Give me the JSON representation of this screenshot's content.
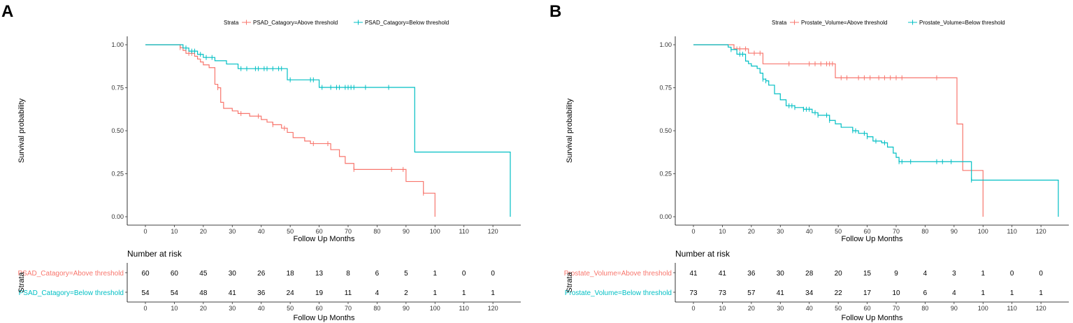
{
  "chart_data": [
    {
      "type": "line",
      "panel_label": "A",
      "title": "",
      "legend_title": "Strata",
      "legend_position": "top",
      "xlabel": "Follow Up Months",
      "ylabel": "Survival probability",
      "xlim": [
        0,
        126
      ],
      "ylim": [
        0,
        1
      ],
      "x_ticks": [
        "0",
        "10",
        "20",
        "30",
        "40",
        "50",
        "60",
        "70",
        "80",
        "90",
        "100",
        "110",
        "120"
      ],
      "y_ticks": [
        "0.00",
        "0.25",
        "0.50",
        "0.75",
        "1.00"
      ],
      "risk_title": "Number at risk",
      "risk_ylabel": "Strata",
      "risk_xlabel": "Follow Up Months",
      "series": [
        {
          "name": "PSAD_Catagory=Above threshold",
          "color": "#F8766D",
          "steps": [
            [
              0,
              1.0
            ],
            [
              12,
              0.983
            ],
            [
              13,
              0.967
            ],
            [
              14,
              0.95
            ],
            [
              17,
              0.933
            ],
            [
              18,
              0.917
            ],
            [
              19,
              0.9
            ],
            [
              20,
              0.883
            ],
            [
              22,
              0.867
            ],
            [
              24,
              0.77
            ],
            [
              25,
              0.75
            ],
            [
              26,
              0.665
            ],
            [
              27,
              0.63
            ],
            [
              30,
              0.615
            ],
            [
              32,
              0.6
            ],
            [
              36,
              0.585
            ],
            [
              40,
              0.565
            ],
            [
              42,
              0.55
            ],
            [
              44,
              0.535
            ],
            [
              47,
              0.515
            ],
            [
              49,
              0.49
            ],
            [
              51,
              0.46
            ],
            [
              55,
              0.44
            ],
            [
              57,
              0.425
            ],
            [
              64,
              0.39
            ],
            [
              67,
              0.35
            ],
            [
              69,
              0.31
            ],
            [
              72,
              0.275
            ],
            [
              90,
              0.205
            ],
            [
              96,
              0.137
            ],
            [
              100,
              0.0
            ]
          ],
          "censor_x": [
            12,
            15,
            16,
            25,
            33,
            39,
            44,
            48,
            58,
            63,
            72,
            85,
            89,
            96
          ],
          "at_risk": [
            60,
            60,
            45,
            30,
            26,
            18,
            13,
            8,
            6,
            5,
            1,
            0,
            0
          ]
        },
        {
          "name": "PSAD_Catagory=Below threshold",
          "color": "#00BFC4",
          "steps": [
            [
              0,
              1.0
            ],
            [
              13,
              0.981
            ],
            [
              15,
              0.963
            ],
            [
              18,
              0.944
            ],
            [
              20,
              0.926
            ],
            [
              24,
              0.907
            ],
            [
              28,
              0.888
            ],
            [
              32,
              0.861
            ],
            [
              49,
              0.796
            ],
            [
              60,
              0.752
            ],
            [
              93,
              0.376
            ],
            [
              126,
              0.0
            ]
          ],
          "censor_x": [
            14,
            16,
            17,
            19,
            21,
            23,
            33,
            35,
            38,
            39,
            41,
            42,
            44,
            46,
            47,
            50,
            57,
            58,
            61,
            64,
            66,
            67,
            69,
            70,
            71,
            72,
            76,
            84
          ],
          "at_risk": [
            54,
            54,
            48,
            41,
            36,
            24,
            19,
            11,
            4,
            2,
            1,
            1,
            1
          ]
        }
      ]
    },
    {
      "type": "line",
      "panel_label": "B",
      "title": "",
      "legend_title": "Strata",
      "legend_position": "top",
      "xlabel": "Follow Up Months",
      "ylabel": "Survival probability",
      "xlim": [
        0,
        126
      ],
      "ylim": [
        0,
        1
      ],
      "x_ticks": [
        "0",
        "10",
        "20",
        "30",
        "40",
        "50",
        "60",
        "70",
        "80",
        "90",
        "100",
        "110",
        "120"
      ],
      "y_ticks": [
        "0.00",
        "0.25",
        "0.50",
        "0.75",
        "1.00"
      ],
      "risk_title": "Number at risk",
      "risk_ylabel": "Strata",
      "risk_xlabel": "Follow Up Months",
      "series": [
        {
          "name": "Prostate_Volume=Above threshold",
          "color": "#F8766D",
          "steps": [
            [
              0,
              1.0
            ],
            [
              14,
              0.976
            ],
            [
              19,
              0.951
            ],
            [
              24,
              0.889
            ],
            [
              49,
              0.808
            ],
            [
              91,
              0.539
            ],
            [
              93,
              0.269
            ],
            [
              100,
              0.0
            ]
          ],
          "censor_x": [
            15,
            16,
            18,
            21,
            23,
            33,
            40,
            42,
            44,
            46,
            47,
            48,
            51,
            53,
            57,
            59,
            61,
            64,
            66,
            68,
            70,
            72,
            84
          ],
          "at_risk": [
            41,
            41,
            36,
            30,
            28,
            20,
            15,
            9,
            4,
            3,
            1,
            0,
            0
          ]
        },
        {
          "name": "Prostate_Volume=Below threshold",
          "color": "#00BFC4",
          "steps": [
            [
              0,
              1.0
            ],
            [
              12,
              0.986
            ],
            [
              13,
              0.972
            ],
            [
              15,
              0.945
            ],
            [
              18,
              0.905
            ],
            [
              19,
              0.89
            ],
            [
              20,
              0.876
            ],
            [
              22,
              0.862
            ],
            [
              23,
              0.835
            ],
            [
              24,
              0.8
            ],
            [
              25,
              0.79
            ],
            [
              26,
              0.765
            ],
            [
              28,
              0.715
            ],
            [
              30,
              0.68
            ],
            [
              32,
              0.645
            ],
            [
              35,
              0.635
            ],
            [
              38,
              0.625
            ],
            [
              41,
              0.605
            ],
            [
              43,
              0.59
            ],
            [
              47,
              0.56
            ],
            [
              49,
              0.54
            ],
            [
              51,
              0.52
            ],
            [
              55,
              0.5
            ],
            [
              57,
              0.485
            ],
            [
              60,
              0.465
            ],
            [
              62,
              0.44
            ],
            [
              65,
              0.43
            ],
            [
              67,
              0.405
            ],
            [
              69,
              0.37
            ],
            [
              70,
              0.345
            ],
            [
              71,
              0.32
            ],
            [
              96,
              0.213
            ],
            [
              126,
              0.0
            ]
          ],
          "censor_x": [
            13,
            16,
            17,
            24,
            25,
            33,
            34,
            35,
            38,
            39,
            40,
            42,
            43,
            46,
            47,
            55,
            56,
            59,
            60,
            63,
            66,
            71,
            72,
            75,
            84,
            86,
            89,
            96
          ],
          "at_risk": [
            73,
            73,
            57,
            41,
            34,
            22,
            17,
            10,
            6,
            4,
            1,
            1,
            1
          ]
        }
      ]
    }
  ]
}
